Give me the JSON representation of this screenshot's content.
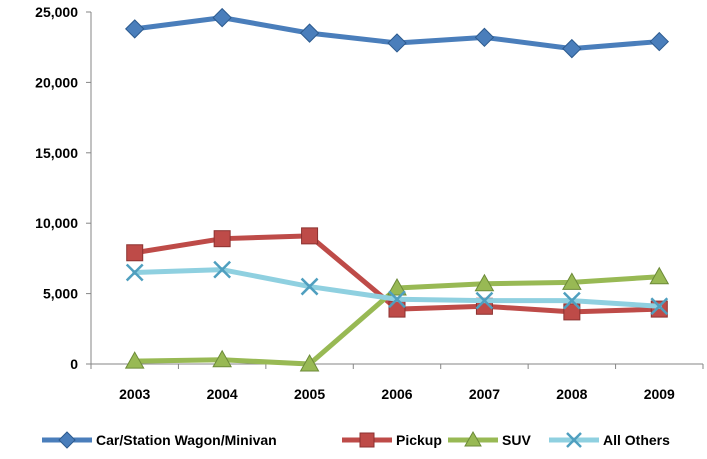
{
  "chart_data": {
    "type": "line",
    "title": "",
    "xlabel": "",
    "ylabel": "",
    "categories": [
      "2003",
      "2004",
      "2005",
      "2006",
      "2007",
      "2008",
      "2009"
    ],
    "ylim": [
      0,
      25000
    ],
    "yticks": [
      0,
      5000,
      10000,
      15000,
      20000,
      25000
    ],
    "ytick_labels": [
      "0",
      "5,000",
      "10,000",
      "15,000",
      "20,000",
      "25,000"
    ],
    "grid": false,
    "legend_position": "bottom",
    "series": [
      {
        "name": "Car/Station Wagon/Minivan",
        "marker": "diamond",
        "color": "#4a7ebb",
        "values": [
          23800,
          24600,
          23500,
          22800,
          23200,
          22400,
          22900
        ]
      },
      {
        "name": "Pickup",
        "marker": "square",
        "color": "#be4b48",
        "values": [
          7900,
          8900,
          9100,
          3900,
          4100,
          3700,
          3900
        ]
      },
      {
        "name": "SUV",
        "marker": "triangle",
        "color": "#98b954",
        "values": [
          200,
          300,
          0,
          5400,
          5700,
          5800,
          6200
        ]
      },
      {
        "name": "All Others",
        "marker": "x",
        "color": "#8fd0e0",
        "marker_color": "#4f9fbf",
        "values": [
          6500,
          6700,
          5500,
          4600,
          4500,
          4500,
          4100
        ]
      }
    ]
  }
}
